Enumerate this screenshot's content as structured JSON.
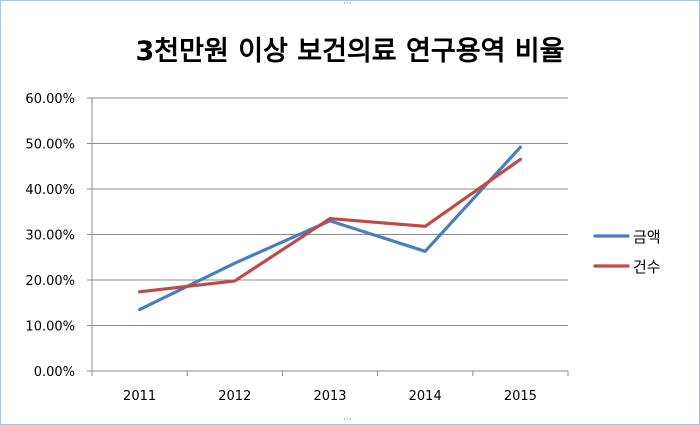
{
  "chart_data": {
    "type": "line",
    "title": "3천만원 이상 보건의료 연구용역 비율",
    "categories": [
      "2011",
      "2012",
      "2013",
      "2014",
      "2015"
    ],
    "series": [
      {
        "name": "금액",
        "color": "#4a7ebb",
        "values": [
          0.135,
          0.237,
          0.33,
          0.263,
          0.492
        ]
      },
      {
        "name": "건수",
        "color": "#be4b48",
        "values": [
          0.174,
          0.198,
          0.335,
          0.318,
          0.465
        ]
      }
    ],
    "ylim": [
      0,
      0.6
    ],
    "yticks": [
      "0.00%",
      "10.00%",
      "20.00%",
      "30.00%",
      "40.00%",
      "50.00%",
      "60.00%"
    ],
    "grid": true,
    "legend": "right"
  }
}
